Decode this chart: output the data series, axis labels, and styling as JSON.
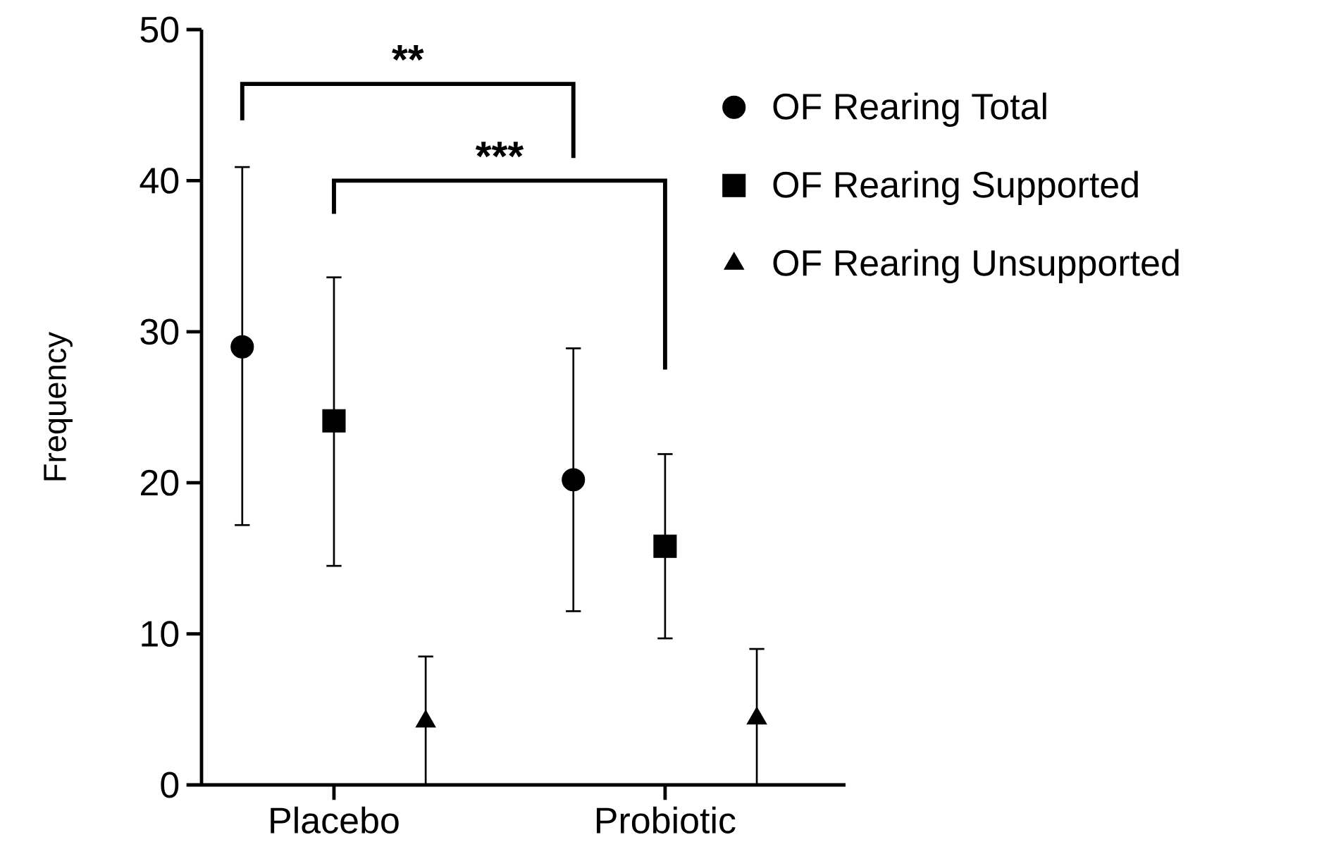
{
  "chart_data": {
    "type": "scatter",
    "ylabel": "Frequency",
    "categories": [
      "Placebo",
      "Probiotic"
    ],
    "series": [
      {
        "name": "OF Rearing Total",
        "color": "#000000",
        "marker": "circle",
        "values": [
          29.0,
          20.2
        ],
        "errors": [
          [
            17.2,
            40.9
          ],
          [
            11.5,
            28.9
          ]
        ]
      },
      {
        "name": "OF Rearing Supported",
        "color": "#000000",
        "marker": "square",
        "values": [
          24.1,
          15.8
        ],
        "errors": [
          [
            14.5,
            33.6
          ],
          [
            9.7,
            21.9
          ]
        ]
      },
      {
        "name": "OF Rearing Unsupported",
        "color": "#000000",
        "marker": "triangle",
        "values": [
          4.2,
          4.4
        ],
        "errors": [
          [
            0,
            8.5
          ],
          [
            0,
            9.0
          ]
        ]
      }
    ],
    "ylim": [
      0,
      50
    ],
    "yticks": [
      0,
      10,
      20,
      30,
      40,
      50
    ],
    "grid": false,
    "legend": "top right",
    "annotations": [
      "**",
      "***"
    ]
  }
}
